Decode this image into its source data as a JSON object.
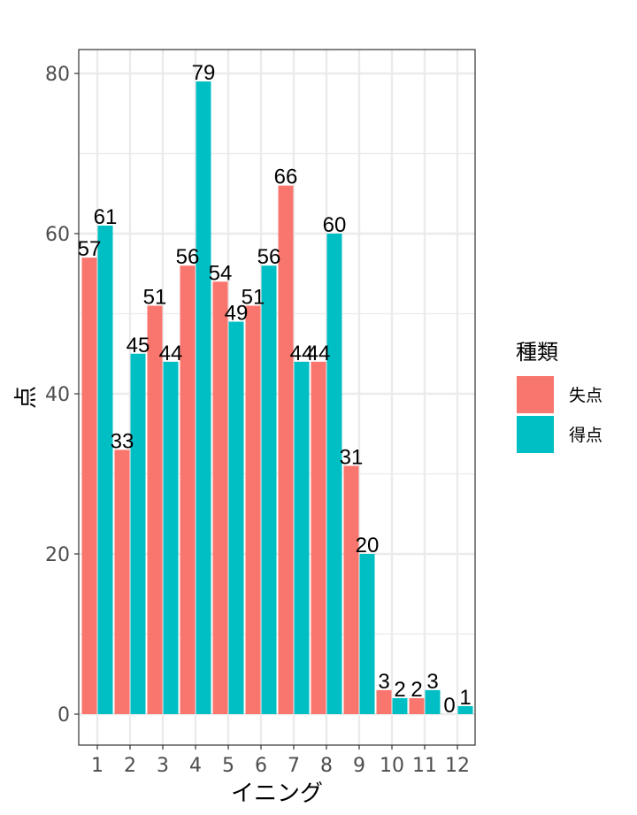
{
  "chart_data": {
    "type": "bar",
    "title": "",
    "xlabel": "イニング",
    "ylabel": "点",
    "ylim": [
      0,
      82
    ],
    "yticks": [
      0,
      20,
      40,
      60,
      80
    ],
    "categories": [
      "1",
      "2",
      "3",
      "4",
      "5",
      "6",
      "7",
      "8",
      "9",
      "10",
      "11",
      "12"
    ],
    "series": [
      {
        "name": "失点",
        "color": "#F8766D",
        "values": [
          57,
          33,
          51,
          56,
          54,
          51,
          66,
          44,
          31,
          3,
          2,
          0
        ]
      },
      {
        "name": "得点",
        "color": "#00BFC4",
        "values": [
          61,
          45,
          44,
          79,
          49,
          56,
          44,
          60,
          20,
          2,
          3,
          1
        ]
      }
    ],
    "legend": {
      "title": "種類",
      "position": "right"
    },
    "grid": true
  }
}
